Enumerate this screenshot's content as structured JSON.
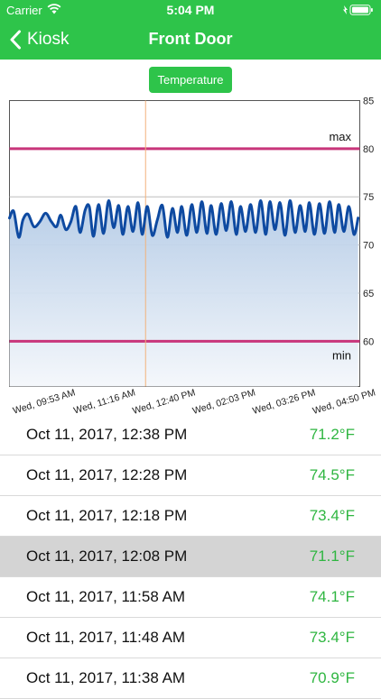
{
  "status_bar": {
    "carrier": "Carrier",
    "time": "5:04 PM"
  },
  "nav": {
    "back_label": "Kiosk",
    "title": "Front Door"
  },
  "toggle": {
    "label": "Temperature"
  },
  "colors": {
    "accent": "#2ec44a",
    "line": "#0e4aa1",
    "threshold": "#c8357a",
    "value_text": "#2fb641",
    "cursor": "#f2b27a"
  },
  "chart_data": {
    "type": "line",
    "ylim": [
      55.3,
      85
    ],
    "y_ticks": [
      60,
      65,
      70,
      75,
      80,
      85
    ],
    "x_ticks": [
      "Wed, 09:53 AM",
      "Wed, 11:16 AM",
      "Wed, 12:40 PM",
      "Wed, 02:03 PM",
      "Wed, 03:26 PM",
      "Wed, 04:50 PM"
    ],
    "x_range_minutes": [
      593,
      1010
    ],
    "thresholds": [
      {
        "label": "max",
        "value": 80
      },
      {
        "label": "min",
        "value": 60
      }
    ],
    "cursor_minutes": 755,
    "series": [
      {
        "points": [
          [
            593,
            72.8
          ],
          [
            598,
            73.5
          ],
          [
            604,
            70.8
          ],
          [
            609,
            72.6
          ],
          [
            615,
            73.2
          ],
          [
            622,
            71.9
          ],
          [
            629,
            72.4
          ],
          [
            636,
            73.3
          ],
          [
            643,
            72.4
          ],
          [
            649,
            71.9
          ],
          [
            654,
            73.1
          ],
          [
            660,
            71.6
          ],
          [
            666,
            72.4
          ],
          [
            672,
            74.0
          ],
          [
            677,
            71.3
          ],
          [
            683,
            73.6
          ],
          [
            688,
            74.0
          ],
          [
            693,
            70.9
          ],
          [
            699,
            74.2
          ],
          [
            705,
            71.2
          ],
          [
            711,
            74.6
          ],
          [
            717,
            71.8
          ],
          [
            723,
            74.1
          ],
          [
            728,
            71.1
          ],
          [
            734,
            74.0
          ],
          [
            740,
            71.4
          ],
          [
            746,
            74.4
          ],
          [
            751,
            71.1
          ],
          [
            757,
            74.0
          ],
          [
            763,
            71.0
          ],
          [
            769,
            72.6
          ],
          [
            775,
            74.1
          ],
          [
            781,
            70.8
          ],
          [
            787,
            73.8
          ],
          [
            793,
            71.3
          ],
          [
            798,
            74.0
          ],
          [
            804,
            71.0
          ],
          [
            810,
            74.2
          ],
          [
            816,
            71.3
          ],
          [
            822,
            74.5
          ],
          [
            828,
            71.2
          ],
          [
            833,
            74.1
          ],
          [
            839,
            71.1
          ],
          [
            845,
            74.3
          ],
          [
            851,
            71.5
          ],
          [
            857,
            74.5
          ],
          [
            863,
            71.1
          ],
          [
            868,
            74.0
          ],
          [
            874,
            71.4
          ],
          [
            880,
            74.2
          ],
          [
            886,
            71.3
          ],
          [
            892,
            74.6
          ],
          [
            898,
            71.1
          ],
          [
            903,
            74.5
          ],
          [
            909,
            71.6
          ],
          [
            915,
            74.4
          ],
          [
            921,
            71.0
          ],
          [
            927,
            74.6
          ],
          [
            933,
            71.3
          ],
          [
            939,
            74.1
          ],
          [
            945,
            71.4
          ],
          [
            950,
            74.4
          ],
          [
            956,
            71.1
          ],
          [
            962,
            74.3
          ],
          [
            968,
            71.2
          ],
          [
            974,
            74.5
          ],
          [
            980,
            71.3
          ],
          [
            985,
            74.2
          ],
          [
            991,
            71.4
          ],
          [
            997,
            74.0
          ],
          [
            1003,
            71.1
          ],
          [
            1008,
            72.8
          ]
        ]
      }
    ]
  },
  "readings": [
    {
      "date": "Oct 11, 2017, 12:38 PM",
      "value": "71.2°F"
    },
    {
      "date": "Oct 11, 2017, 12:28 PM",
      "value": "74.5°F"
    },
    {
      "date": "Oct 11, 2017, 12:18 PM",
      "value": "73.4°F"
    },
    {
      "date": "Oct 11, 2017, 12:08 PM",
      "value": "71.1°F",
      "selected": true
    },
    {
      "date": "Oct 11, 2017, 11:58 AM",
      "value": "74.1°F"
    },
    {
      "date": "Oct 11, 2017, 11:48 AM",
      "value": "73.4°F"
    },
    {
      "date": "Oct 11, 2017, 11:38 AM",
      "value": "70.9°F"
    }
  ]
}
